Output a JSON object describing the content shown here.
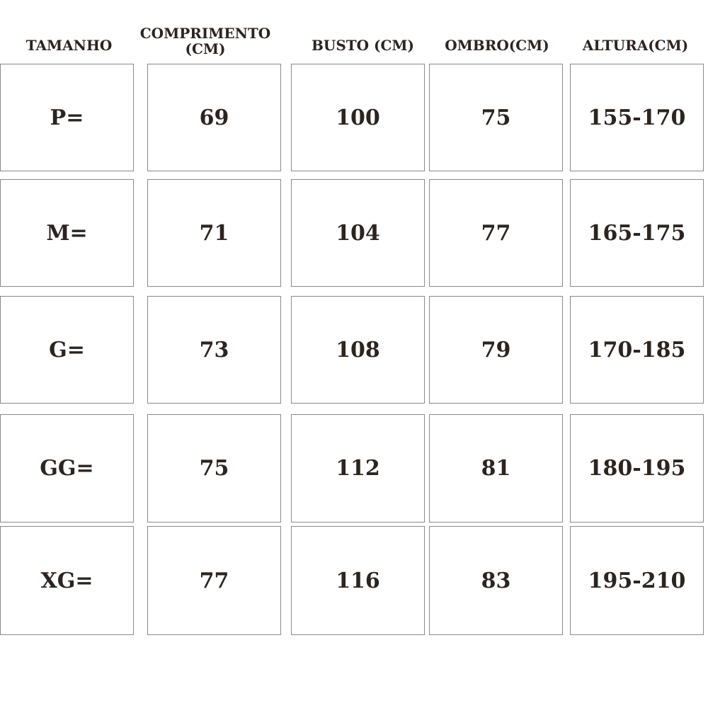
{
  "headers": [
    "TAMANHO",
    "COMPRIMENTO (CM)",
    "BUSTO (CM)",
    "OMBRO(CM)",
    "ALTURA(CM)"
  ],
  "header_lines": {
    "comprimento_1": "COMPRIMENTO",
    "comprimento_2": "(CM)"
  },
  "rows": [
    [
      "P=",
      "69",
      "100",
      "75",
      "155-170"
    ],
    [
      "M=",
      "71",
      "104",
      "77",
      "165-175"
    ],
    [
      "G=",
      "73",
      "108",
      "79",
      "170-185"
    ],
    [
      "GG=",
      "75",
      "112",
      "81",
      "180-195"
    ],
    [
      "XG=",
      "77",
      "116",
      "83",
      "195-210"
    ]
  ],
  "colors": {
    "text": "#2b2420",
    "border": "#8a8a8a"
  }
}
